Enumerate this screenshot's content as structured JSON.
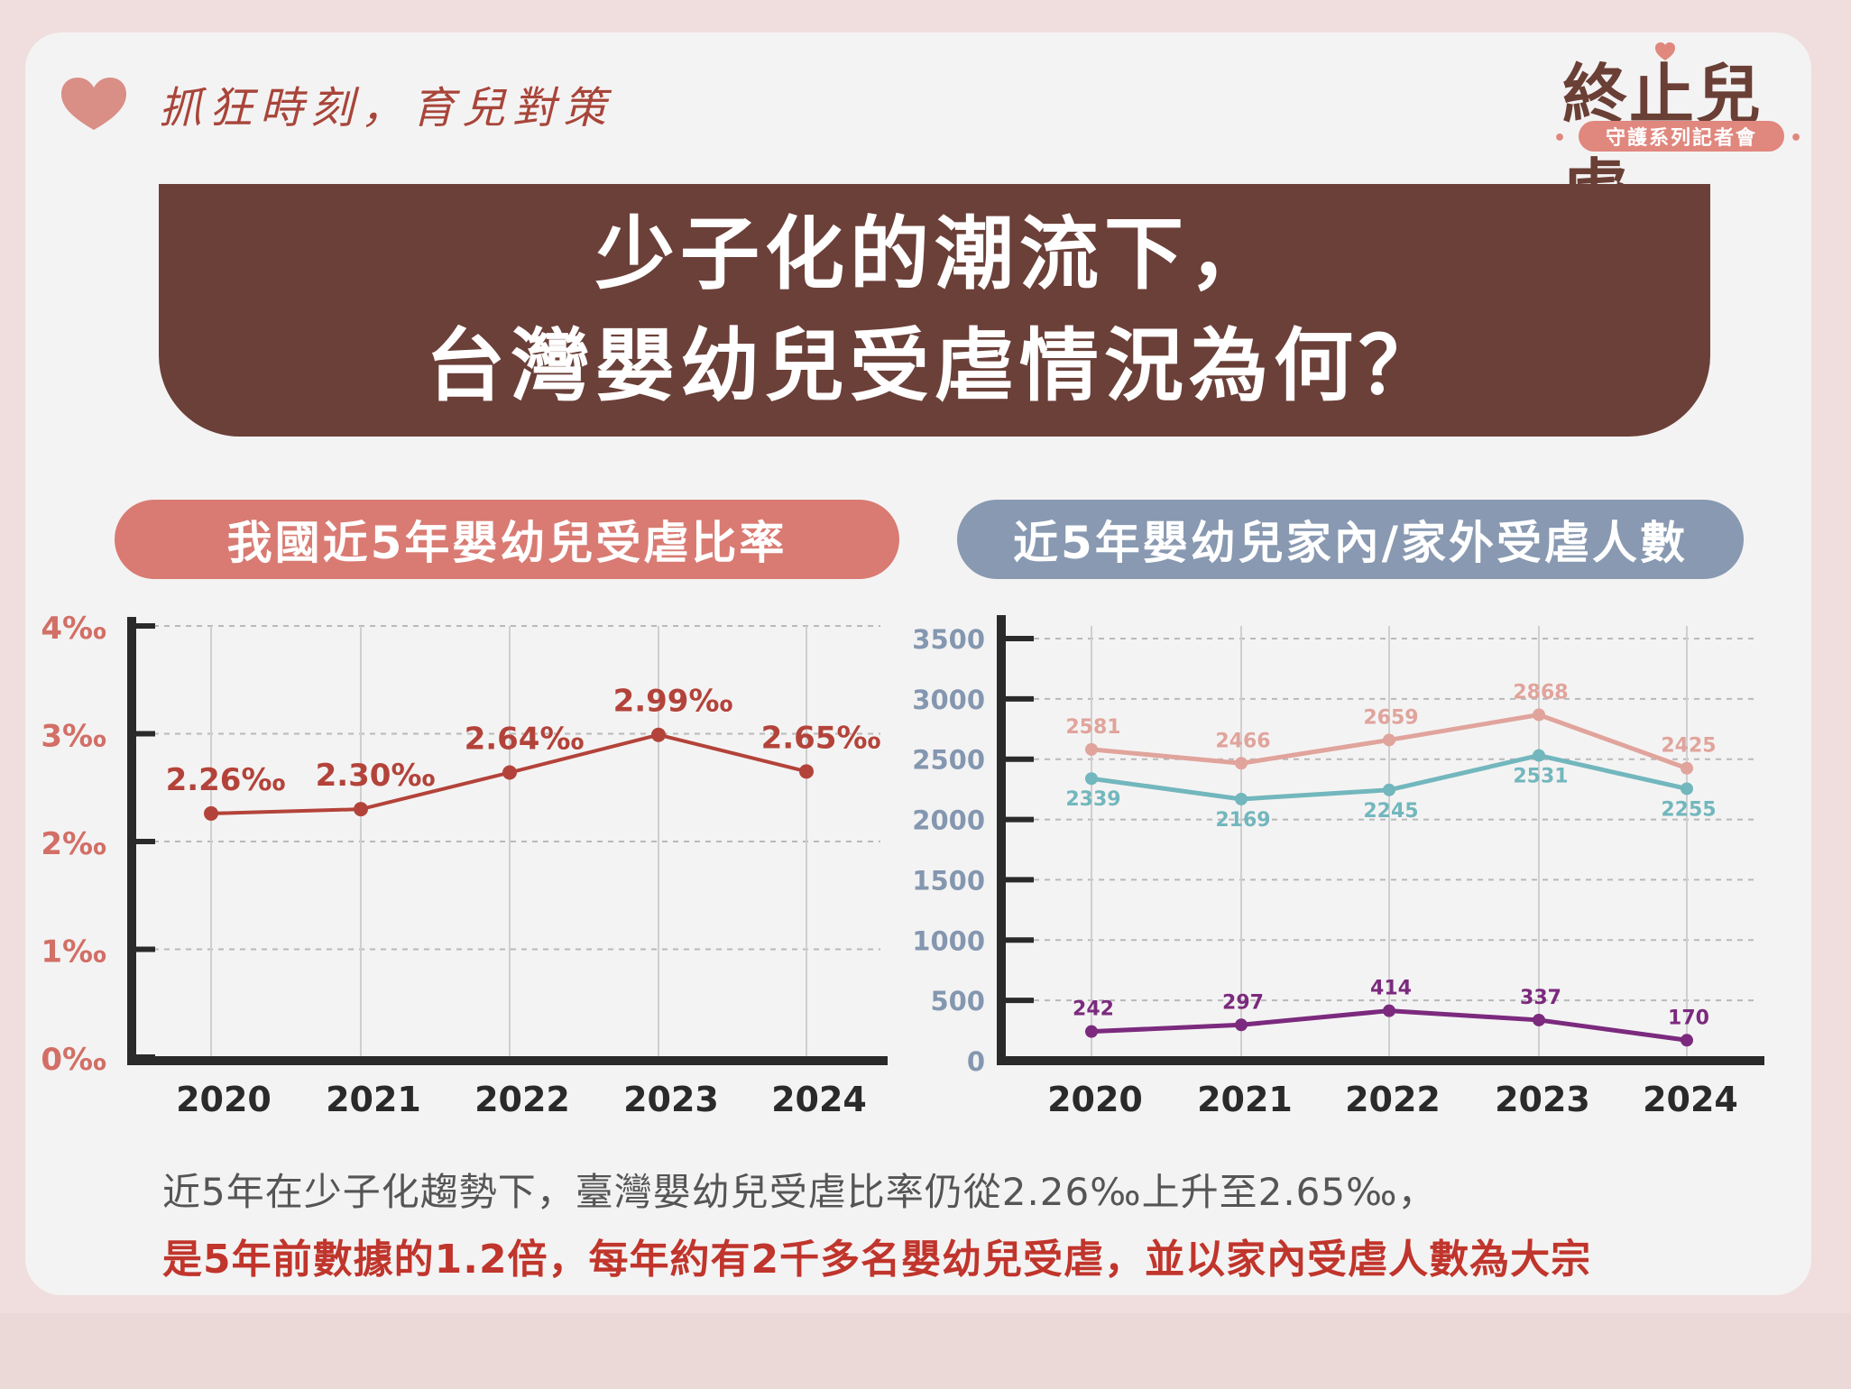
{
  "brand": {
    "tagline": "抓狂時刻，育兒對策"
  },
  "logo": {
    "title": "終止兒虐",
    "subtitle": "守護系列記者會"
  },
  "banner": {
    "line1": "少子化的潮流下，",
    "line2": "台灣嬰幼兒受虐情況為何？"
  },
  "colors": {
    "rate_line": "#b3433a",
    "rate_axis_label": "#d26f66",
    "home_line": "#e0a49c",
    "outside_line": "#72b7bd",
    "purple_line": "#7b2a7e",
    "count_axis_label": "#8497b0"
  },
  "chart_data": [
    {
      "type": "line",
      "title": "我國近5年嬰幼兒受虐比率",
      "categories": [
        "2020",
        "2021",
        "2022",
        "2023",
        "2024"
      ],
      "yticks": [
        "0‰",
        "1‰",
        "2‰",
        "3‰",
        "4‰"
      ],
      "ylim": [
        0,
        4
      ],
      "series": [
        {
          "values": [
            2.26,
            2.3,
            2.64,
            2.99,
            2.65
          ],
          "labels": [
            "2.26‰",
            "2.30‰",
            "2.64‰",
            "2.99‰",
            "2.65‰"
          ]
        }
      ]
    },
    {
      "type": "line",
      "title": "近5年嬰幼兒家內/家外受虐人數",
      "categories": [
        "2020",
        "2021",
        "2022",
        "2023",
        "2024"
      ],
      "yticks": [
        "0",
        "500",
        "1000",
        "1500",
        "2000",
        "2500",
        "3000",
        "3500"
      ],
      "ylim": [
        0,
        3500
      ],
      "series": [
        {
          "values": [
            2581,
            2466,
            2659,
            2868,
            2425
          ]
        },
        {
          "values": [
            2339,
            2169,
            2245,
            2531,
            2255
          ]
        },
        {
          "values": [
            242,
            297,
            414,
            337,
            170
          ]
        }
      ]
    }
  ],
  "summary": {
    "line1": "近5年在少子化趨勢下，臺灣嬰幼兒受虐比率仍從2.26‰上升至2.65‰，",
    "line2": "是5年前數據的1.2倍，每年約有2千多名嬰幼兒受虐，並以家內受虐人數為大宗"
  }
}
